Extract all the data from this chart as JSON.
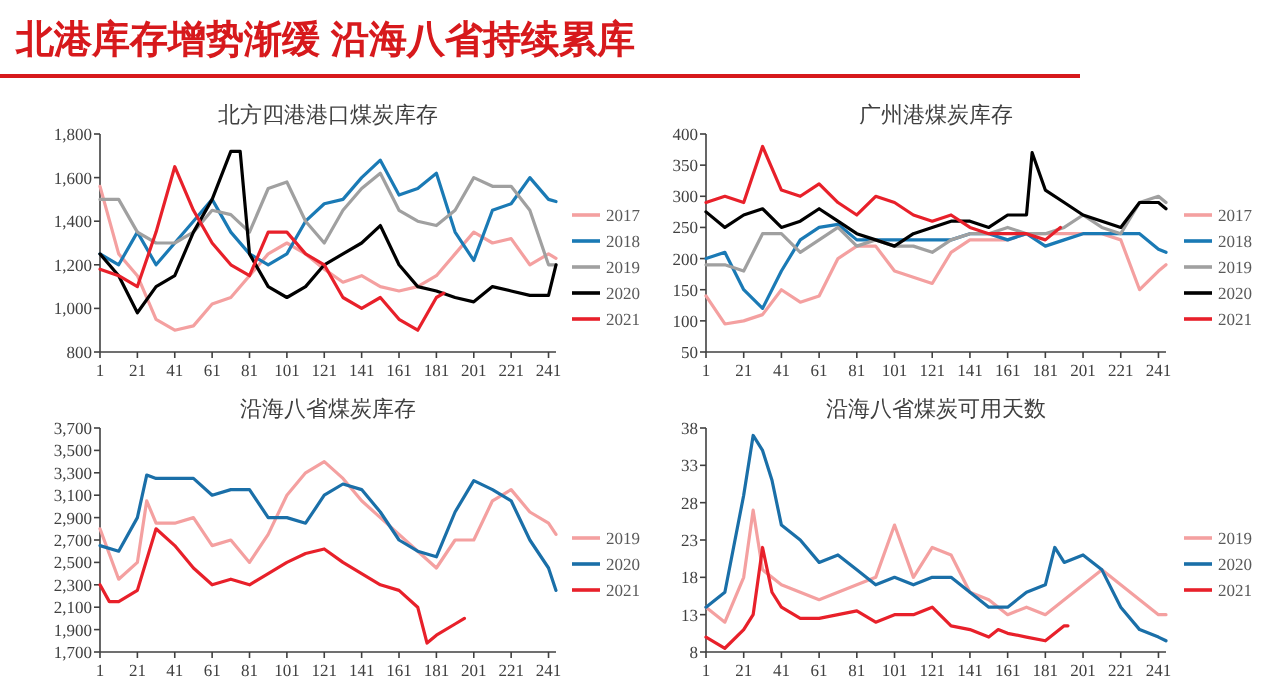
{
  "chart_data": [
    {
      "type": "line",
      "title": "北方四港港口煤炭库存",
      "annotations": [
        "北港库存增势渐缓 沿海八省持续累库"
      ],
      "xlim": [
        1,
        245
      ],
      "xticks": [
        1,
        21,
        41,
        61,
        81,
        101,
        121,
        141,
        161,
        181,
        201,
        221,
        241
      ],
      "ylim": [
        800,
        1800
      ],
      "yticks": [
        {
          "value": 800,
          "label": "800"
        },
        {
          "value": 1000,
          "label": "1,000"
        },
        {
          "value": 1200,
          "label": "1,200"
        },
        {
          "value": 1400,
          "label": "1,400"
        },
        {
          "value": 1600,
          "label": "1,600"
        },
        {
          "value": 1800,
          "label": "1,800"
        }
      ],
      "grid": false,
      "legend": "right",
      "marker": "none",
      "line_style": "solid",
      "series": [
        {
          "name": "2017",
          "color": "#f4a0a0",
          "x": [
            1,
            11,
            21,
            31,
            41,
            51,
            61,
            71,
            81,
            91,
            101,
            111,
            121,
            131,
            141,
            151,
            161,
            171,
            181,
            191,
            201,
            211,
            221,
            231,
            241,
            245
          ],
          "values": [
            1560,
            1250,
            1150,
            950,
            900,
            920,
            1020,
            1050,
            1150,
            1250,
            1300,
            1250,
            1180,
            1120,
            1150,
            1100,
            1080,
            1100,
            1150,
            1250,
            1350,
            1300,
            1320,
            1200,
            1250,
            1230
          ]
        },
        {
          "name": "2018",
          "color": "#1a7ab5",
          "x": [
            1,
            11,
            21,
            31,
            41,
            51,
            61,
            71,
            81,
            91,
            101,
            111,
            121,
            131,
            141,
            151,
            161,
            171,
            181,
            191,
            201,
            211,
            221,
            231,
            241,
            245
          ],
          "values": [
            1250,
            1200,
            1350,
            1200,
            1300,
            1400,
            1500,
            1350,
            1250,
            1200,
            1250,
            1400,
            1480,
            1500,
            1600,
            1680,
            1520,
            1550,
            1620,
            1350,
            1220,
            1450,
            1480,
            1600,
            1500,
            1490
          ]
        },
        {
          "name": "2019",
          "color": "#a0a0a0",
          "x": [
            1,
            11,
            21,
            31,
            41,
            51,
            61,
            71,
            81,
            91,
            101,
            111,
            121,
            131,
            141,
            151,
            161,
            171,
            181,
            191,
            201,
            211,
            221,
            231,
            241,
            245
          ],
          "values": [
            1500,
            1500,
            1350,
            1300,
            1300,
            1350,
            1450,
            1430,
            1350,
            1550,
            1580,
            1400,
            1300,
            1450,
            1550,
            1620,
            1450,
            1400,
            1380,
            1450,
            1600,
            1560,
            1560,
            1450,
            1200,
            1200
          ]
        },
        {
          "name": "2020",
          "color": "#000000",
          "x": [
            1,
            11,
            21,
            31,
            41,
            51,
            61,
            71,
            76,
            81,
            91,
            101,
            111,
            121,
            131,
            141,
            151,
            161,
            171,
            181,
            191,
            201,
            211,
            221,
            231,
            241,
            245
          ],
          "values": [
            1250,
            1150,
            980,
            1100,
            1150,
            1350,
            1500,
            1720,
            1720,
            1250,
            1100,
            1050,
            1100,
            1200,
            1250,
            1300,
            1380,
            1200,
            1100,
            1080,
            1050,
            1030,
            1100,
            1080,
            1060,
            1060,
            1200
          ]
        },
        {
          "name": "2021",
          "color": "#e8202a",
          "x": [
            1,
            11,
            21,
            31,
            41,
            51,
            61,
            71,
            81,
            91,
            101,
            111,
            121,
            131,
            141,
            151,
            161,
            171,
            181,
            185
          ],
          "values": [
            1180,
            1150,
            1100,
            1350,
            1650,
            1450,
            1300,
            1200,
            1150,
            1350,
            1350,
            1250,
            1200,
            1050,
            1000,
            1050,
            950,
            900,
            1050,
            1070
          ]
        }
      ]
    },
    {
      "type": "line",
      "title": "广州港煤炭库存",
      "xlim": [
        1,
        245
      ],
      "xticks": [
        1,
        21,
        41,
        61,
        81,
        101,
        121,
        141,
        161,
        181,
        201,
        221,
        241
      ],
      "ylim": [
        50,
        400
      ],
      "yticks": [
        50,
        100,
        150,
        200,
        250,
        300,
        350,
        400
      ],
      "grid": false,
      "legend": "right",
      "marker": "none",
      "line_style": "solid",
      "series": [
        {
          "name": "2017",
          "color": "#f4a0a0",
          "x": [
            1,
            11,
            21,
            31,
            41,
            51,
            61,
            71,
            81,
            91,
            101,
            111,
            121,
            131,
            141,
            151,
            161,
            171,
            181,
            191,
            201,
            211,
            221,
            231,
            241,
            245
          ],
          "values": [
            140,
            95,
            100,
            110,
            150,
            130,
            140,
            200,
            220,
            220,
            180,
            170,
            160,
            210,
            230,
            230,
            230,
            240,
            240,
            240,
            240,
            240,
            230,
            150,
            180,
            190
          ]
        },
        {
          "name": "2018",
          "color": "#1a7ab5",
          "x": [
            1,
            11,
            21,
            31,
            41,
            51,
            61,
            71,
            81,
            91,
            101,
            111,
            121,
            131,
            141,
            151,
            161,
            171,
            181,
            191,
            201,
            211,
            221,
            231,
            241,
            245
          ],
          "values": [
            200,
            210,
            150,
            120,
            180,
            230,
            250,
            255,
            230,
            230,
            230,
            230,
            230,
            230,
            240,
            240,
            230,
            240,
            220,
            230,
            240,
            240,
            240,
            240,
            215,
            210
          ]
        },
        {
          "name": "2019",
          "color": "#a0a0a0",
          "x": [
            1,
            11,
            21,
            31,
            41,
            51,
            61,
            71,
            81,
            91,
            101,
            111,
            121,
            131,
            141,
            151,
            161,
            171,
            181,
            191,
            201,
            211,
            221,
            231,
            241,
            245
          ],
          "values": [
            190,
            190,
            180,
            240,
            240,
            210,
            230,
            250,
            220,
            230,
            220,
            220,
            210,
            230,
            240,
            240,
            250,
            240,
            240,
            250,
            270,
            250,
            240,
            290,
            300,
            290
          ]
        },
        {
          "name": "2020",
          "color": "#000000",
          "x": [
            1,
            11,
            21,
            31,
            41,
            51,
            61,
            71,
            81,
            91,
            101,
            111,
            121,
            131,
            141,
            151,
            161,
            171,
            174,
            181,
            191,
            201,
            211,
            221,
            231,
            241,
            245
          ],
          "values": [
            275,
            250,
            270,
            280,
            250,
            260,
            280,
            260,
            240,
            230,
            220,
            240,
            250,
            260,
            260,
            250,
            270,
            270,
            370,
            310,
            290,
            270,
            260,
            250,
            290,
            290,
            280
          ]
        },
        {
          "name": "2021",
          "color": "#e8202a",
          "x": [
            1,
            11,
            21,
            31,
            41,
            51,
            61,
            71,
            81,
            91,
            101,
            111,
            121,
            131,
            141,
            151,
            161,
            171,
            181,
            189
          ],
          "values": [
            290,
            300,
            290,
            380,
            310,
            300,
            320,
            290,
            270,
            300,
            290,
            270,
            260,
            270,
            250,
            240,
            240,
            240,
            230,
            250
          ]
        }
      ]
    },
    {
      "type": "line",
      "title": "沿海八省煤炭库存",
      "xlim": [
        1,
        245
      ],
      "xticks": [
        1,
        21,
        41,
        61,
        81,
        101,
        121,
        141,
        161,
        181,
        201,
        221,
        241
      ],
      "ylim": [
        1700,
        3700
      ],
      "yticks": [
        {
          "value": 1700,
          "label": "1,700"
        },
        {
          "value": 1900,
          "label": "1,900"
        },
        {
          "value": 2100,
          "label": "2,100"
        },
        {
          "value": 2300,
          "label": "2,300"
        },
        {
          "value": 2500,
          "label": "2,500"
        },
        {
          "value": 2700,
          "label": "2,700"
        },
        {
          "value": 2900,
          "label": "2,900"
        },
        {
          "value": 3100,
          "label": "3,100"
        },
        {
          "value": 3300,
          "label": "3,300"
        },
        {
          "value": 3500,
          "label": "3,500"
        },
        {
          "value": 3700,
          "label": "3,700"
        }
      ],
      "grid": false,
      "legend": "right",
      "marker": "none",
      "line_style": "solid",
      "series": [
        {
          "name": "2019",
          "color": "#f4a0a0",
          "x": [
            1,
            11,
            21,
            26,
            31,
            41,
            51,
            61,
            71,
            81,
            91,
            101,
            111,
            121,
            131,
            141,
            151,
            161,
            171,
            181,
            191,
            201,
            211,
            221,
            231,
            241,
            245
          ],
          "values": [
            2800,
            2350,
            2500,
            3050,
            2850,
            2850,
            2900,
            2650,
            2700,
            2500,
            2750,
            3100,
            3300,
            3400,
            3250,
            3050,
            2900,
            2750,
            2600,
            2450,
            2700,
            2700,
            3050,
            3150,
            2950,
            2850,
            2750
          ]
        },
        {
          "name": "2020",
          "color": "#1a6fa8",
          "x": [
            1,
            11,
            21,
            26,
            31,
            41,
            51,
            61,
            71,
            81,
            91,
            101,
            111,
            121,
            131,
            141,
            151,
            161,
            171,
            181,
            191,
            201,
            211,
            221,
            231,
            241,
            245
          ],
          "values": [
            2650,
            2600,
            2900,
            3280,
            3250,
            3250,
            3250,
            3100,
            3150,
            3150,
            2900,
            2900,
            2850,
            3100,
            3200,
            3150,
            2950,
            2700,
            2600,
            2550,
            2950,
            3230,
            3150,
            3050,
            2700,
            2450,
            2250
          ]
        },
        {
          "name": "2021",
          "color": "#e8202a",
          "x": [
            1,
            6,
            11,
            21,
            31,
            41,
            51,
            61,
            71,
            81,
            91,
            101,
            111,
            121,
            131,
            141,
            151,
            161,
            171,
            176,
            181,
            191,
            196
          ],
          "values": [
            2300,
            2150,
            2150,
            2250,
            2800,
            2650,
            2450,
            2300,
            2350,
            2300,
            2400,
            2500,
            2580,
            2620,
            2500,
            2400,
            2300,
            2250,
            2100,
            1780,
            1850,
            1950,
            2000
          ]
        }
      ]
    },
    {
      "type": "line",
      "title": "沿海八省煤炭可用天数",
      "xlim": [
        1,
        245
      ],
      "xticks": [
        1,
        21,
        41,
        61,
        81,
        101,
        121,
        141,
        161,
        181,
        201,
        221,
        241
      ],
      "ylim": [
        8,
        38
      ],
      "yticks": [
        8,
        13,
        18,
        23,
        28,
        33,
        38
      ],
      "grid": false,
      "legend": "right",
      "marker": "none",
      "line_style": "solid",
      "series": [
        {
          "name": "2019",
          "color": "#f4a0a0",
          "x": [
            1,
            11,
            21,
            26,
            31,
            41,
            51,
            61,
            71,
            81,
            91,
            101,
            111,
            121,
            131,
            141,
            151,
            161,
            171,
            181,
            191,
            201,
            211,
            221,
            231,
            241,
            245
          ],
          "values": [
            14,
            12,
            18,
            27,
            19,
            17,
            16,
            15,
            16,
            17,
            18,
            25,
            18,
            22,
            21,
            16,
            15,
            13,
            14,
            13,
            15,
            17,
            19,
            17,
            15,
            13,
            13
          ]
        },
        {
          "name": "2020",
          "color": "#1a6fa8",
          "x": [
            1,
            11,
            21,
            26,
            31,
            36,
            41,
            51,
            61,
            71,
            81,
            91,
            101,
            111,
            121,
            131,
            141,
            151,
            161,
            171,
            181,
            186,
            191,
            201,
            211,
            221,
            231,
            241,
            245
          ],
          "values": [
            14,
            16,
            29,
            37,
            35,
            31,
            25,
            23,
            20,
            21,
            19,
            17,
            18,
            17,
            18,
            18,
            16,
            14,
            14,
            16,
            17,
            22,
            20,
            21,
            19,
            14,
            11,
            10,
            9.5
          ]
        },
        {
          "name": "2021",
          "color": "#e8202a",
          "x": [
            1,
            11,
            21,
            26,
            31,
            36,
            41,
            51,
            61,
            71,
            81,
            91,
            101,
            111,
            121,
            131,
            141,
            151,
            156,
            161,
            171,
            181,
            191,
            193
          ],
          "values": [
            10,
            8.5,
            11,
            13,
            22,
            16,
            14,
            12.5,
            12.5,
            13,
            13.5,
            12,
            13,
            13,
            14,
            11.5,
            11,
            10,
            11,
            10.5,
            10,
            9.5,
            11.5,
            11.5
          ]
        }
      ]
    }
  ]
}
